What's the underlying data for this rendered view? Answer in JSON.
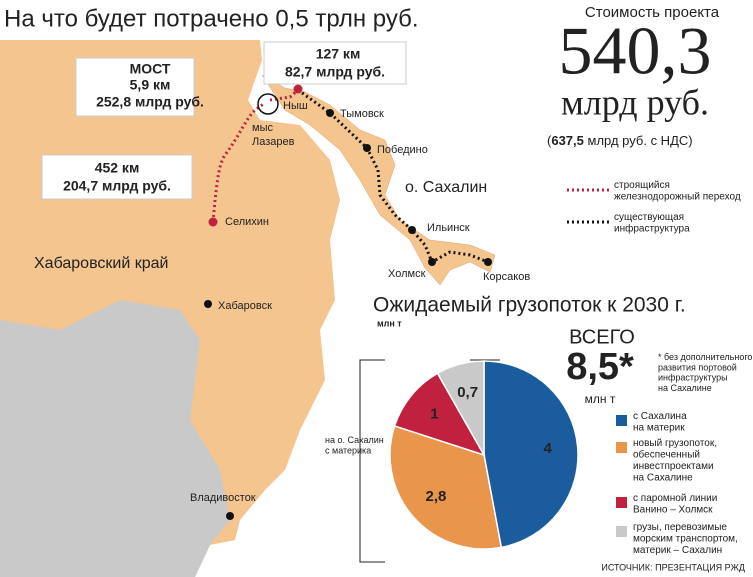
{
  "header": {
    "title": "На что будет потрачено 0,5 трлн руб."
  },
  "cost": {
    "label": "Стоимость проекта",
    "value": "540,3",
    "unit": "млрд руб.",
    "vat_prefix": "(",
    "vat_value": "637,5",
    "vat_text": "млрд руб. с НДС)"
  },
  "callouts": [
    {
      "name": "МОСТ",
      "length": "5,9 км",
      "cost": "252,8 млрд руб."
    },
    {
      "length": "127 км",
      "cost": "82,7 млрд руб."
    },
    {
      "length": "452 км",
      "cost": "204,7 млрд руб."
    }
  ],
  "places": [
    "Ныш",
    "мыс",
    "Лазарев",
    "Тымовск",
    "Победино",
    "о. Сахалин",
    "Ильинск",
    "Холмск",
    "Корсаков",
    "Селихин",
    "Хабаровский край",
    "Хабаровск",
    "Владивосток"
  ],
  "map_legend": [
    {
      "text": "строящийся\nжелезнодорожный переход"
    },
    {
      "text": "существующая\nинфраструктура"
    }
  ],
  "chart_data": {
    "type": "pie",
    "title": "Ожидаемый грузопоток к 2030 г.",
    "subtitle": "млн т",
    "total_label": "ВСЕГО",
    "total": "8,5*",
    "total_unit": "млн т",
    "footnote": "* без дополнительного\nразвития портовой\nинфраструктуры\nна Сахалине",
    "bracket_label": "на о. Сахалин\nс материка",
    "categories": [
      "с Сахалина\nна материк",
      "новый грузопоток,\nобеспеченный\nинвестпроектами\nна Сахалине",
      "с паромной линии\nВанино – Холмск",
      "грузы, перевозимые\nморским транспортом,\nматерик – Сахалин"
    ],
    "values": [
      4,
      2.8,
      1,
      0.7
    ],
    "value_labels": [
      "4",
      "2,8",
      "1",
      "0,7"
    ],
    "colors": [
      "#1b5c9e",
      "#e9954c",
      "#c0213f",
      "#c9c9c9"
    ]
  },
  "source": "ИСТОЧНИК: ПРЕЗЕНТАЦИЯ РЖД"
}
